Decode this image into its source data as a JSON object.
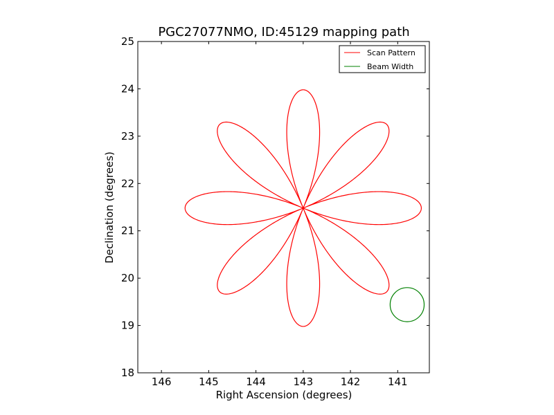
{
  "chart_data": {
    "type": "line",
    "title": "PGC27077NMO, ID:45129 mapping path",
    "xlabel": "Right Ascension (degrees)",
    "ylabel": "Declination (degrees)",
    "xlim": [
      146.5,
      140.33
    ],
    "ylim": [
      18,
      25
    ],
    "x_inverted": true,
    "xticks": [
      "146",
      "145",
      "144",
      "143",
      "142",
      "141"
    ],
    "yticks": [
      "18",
      "19",
      "20",
      "21",
      "22",
      "23",
      "24",
      "25"
    ],
    "legend": {
      "position": "top-right",
      "entries": [
        {
          "label": "Scan Pattern",
          "color": "#ff0000"
        },
        {
          "label": "Beam Width",
          "color": "#008000"
        }
      ]
    },
    "series": [
      {
        "name": "Scan Pattern",
        "kind": "rose-curve",
        "petals": 8,
        "center": {
          "ra": 143.0,
          "dec": 21.48
        },
        "radius_deg": 2.5,
        "color": "#ff0000"
      },
      {
        "name": "Beam Width",
        "kind": "circle",
        "center": {
          "ra": 140.8,
          "dec": 19.44
        },
        "radius_deg": 0.36,
        "color": "#008000"
      }
    ]
  }
}
